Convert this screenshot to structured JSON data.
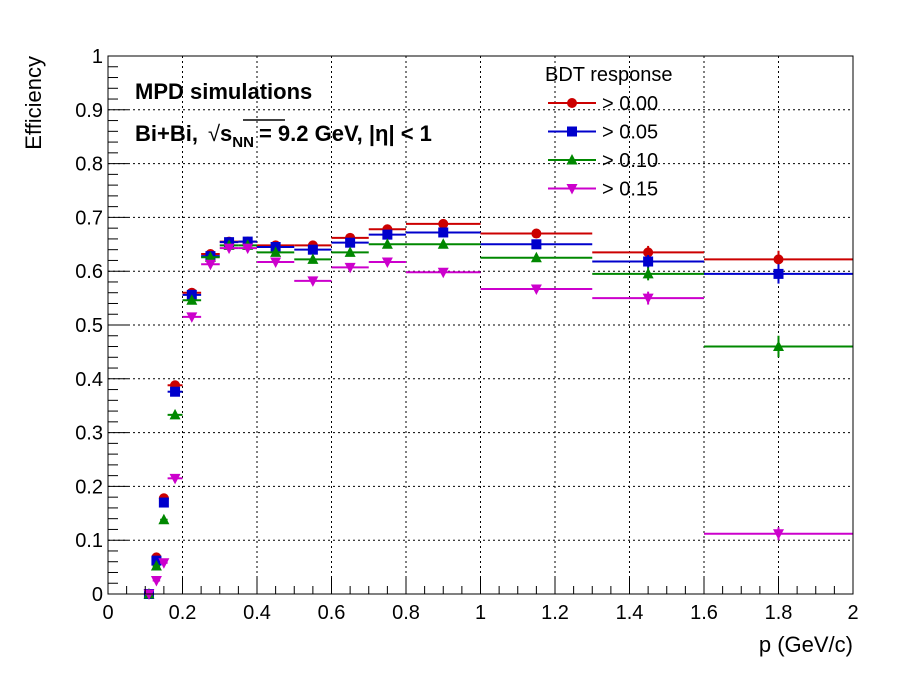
{
  "chart_data": {
    "type": "scatter",
    "xlabel": "p (GeV/c)",
    "ylabel": "Efficiency",
    "xlim": [
      0,
      2
    ],
    "ylim": [
      0,
      1
    ],
    "xticks": [
      "0",
      "0.2",
      "0.4",
      "0.6",
      "0.8",
      "1",
      "1.2",
      "1.4",
      "1.6",
      "1.8",
      "2"
    ],
    "yticks": [
      "0",
      "0.1",
      "0.2",
      "0.3",
      "0.4",
      "0.5",
      "0.6",
      "0.7",
      "0.8",
      "0.9",
      "1"
    ],
    "grid": true,
    "legend_title": "BDT response",
    "legend_position": "top-right",
    "annotations": {
      "line1": "MPD simulations",
      "line2_prefix": "Bi+Bi,",
      "line2_sqrt_symbol": "√",
      "line2_s": "s",
      "line2_sub": "NN",
      "line2_suffix": "= 9.2 GeV, |η| < 1"
    },
    "bins": [
      [
        0.1,
        0.12
      ],
      [
        0.12,
        0.14
      ],
      [
        0.14,
        0.16
      ],
      [
        0.16,
        0.2
      ],
      [
        0.2,
        0.25
      ],
      [
        0.25,
        0.3
      ],
      [
        0.3,
        0.35
      ],
      [
        0.35,
        0.4
      ],
      [
        0.4,
        0.5
      ],
      [
        0.5,
        0.6
      ],
      [
        0.6,
        0.7
      ],
      [
        0.7,
        0.8
      ],
      [
        0.8,
        1.0
      ],
      [
        1.0,
        1.3
      ],
      [
        1.3,
        1.6
      ],
      [
        1.6,
        2.0
      ]
    ],
    "x": [
      0.11,
      0.13,
      0.15,
      0.18,
      0.225,
      0.275,
      0.325,
      0.375,
      0.45,
      0.55,
      0.65,
      0.75,
      0.9,
      1.15,
      1.45,
      1.8
    ],
    "series": [
      {
        "name": "> 0.00",
        "color": "#cc0000",
        "marker": "circle",
        "values": [
          0.0,
          0.068,
          0.178,
          0.388,
          0.56,
          0.632,
          0.655,
          0.655,
          0.648,
          0.648,
          0.662,
          0.678,
          0.688,
          0.67,
          0.635,
          0.622
        ],
        "errors": [
          0.002,
          0.004,
          0.006,
          0.006,
          0.005,
          0.004,
          0.004,
          0.004,
          0.004,
          0.004,
          0.005,
          0.005,
          0.006,
          0.007,
          0.012,
          0.016
        ]
      },
      {
        "name": "> 0.05",
        "color": "#0000cc",
        "marker": "square",
        "values": [
          0.0,
          0.062,
          0.17,
          0.376,
          0.556,
          0.628,
          0.654,
          0.655,
          0.645,
          0.64,
          0.653,
          0.668,
          0.672,
          0.65,
          0.618,
          0.595
        ],
        "errors": [
          0.002,
          0.004,
          0.006,
          0.006,
          0.005,
          0.004,
          0.004,
          0.004,
          0.004,
          0.004,
          0.005,
          0.005,
          0.006,
          0.007,
          0.012,
          0.018
        ]
      },
      {
        "name": "> 0.10",
        "color": "#008800",
        "marker": "triangle-up",
        "values": [
          0.0,
          0.052,
          0.138,
          0.333,
          0.546,
          0.626,
          0.648,
          0.648,
          0.635,
          0.622,
          0.635,
          0.65,
          0.65,
          0.625,
          0.595,
          0.46
        ],
        "errors": [
          0.002,
          0.004,
          0.006,
          0.006,
          0.005,
          0.004,
          0.004,
          0.004,
          0.004,
          0.004,
          0.005,
          0.005,
          0.006,
          0.007,
          0.012,
          0.02
        ]
      },
      {
        "name": "> 0.15",
        "color": "#cc00cc",
        "marker": "triangle-down",
        "values": [
          0.0,
          0.025,
          0.058,
          0.215,
          0.515,
          0.613,
          0.643,
          0.643,
          0.617,
          0.582,
          0.607,
          0.617,
          0.598,
          0.567,
          0.55,
          0.112
        ],
        "errors": [
          0.002,
          0.003,
          0.005,
          0.006,
          0.006,
          0.004,
          0.004,
          0.004,
          0.004,
          0.004,
          0.005,
          0.005,
          0.006,
          0.007,
          0.012,
          0.012
        ]
      }
    ]
  }
}
